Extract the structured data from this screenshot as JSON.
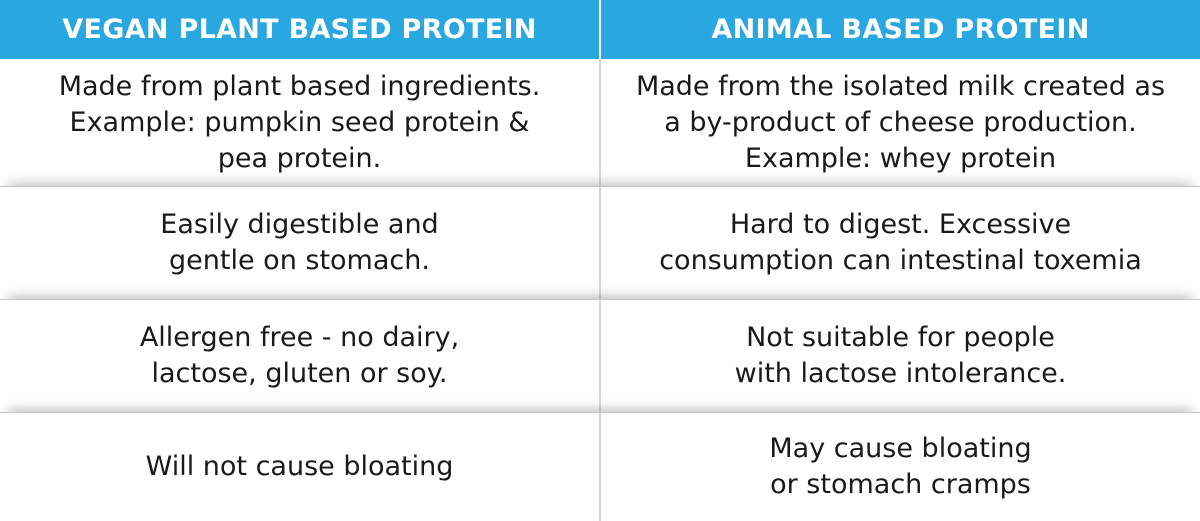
{
  "colors": {
    "header_background": "#29a7e1",
    "header_text": "#ffffff",
    "body_text": "#1a1a1a"
  },
  "headers": {
    "left": "VEGAN PLANT BASED PROTEIN",
    "right": "ANIMAL BASED PROTEIN"
  },
  "rows": [
    {
      "left": "Made from plant based ingredients.\nExample: pumpkin seed protein &\npea protein.",
      "right": "Made from the isolated milk created as\na by-product of cheese production.\nExample: whey protein"
    },
    {
      "left": "Easily digestible and\ngentle on stomach.",
      "right": "Hard to digest. Excessive\nconsumption can intestinal toxemia"
    },
    {
      "left": "Allergen free - no dairy,\nlactose, gluten or soy.",
      "right": "Not suitable for people\nwith lactose intolerance."
    },
    {
      "left": "Will not cause bloating",
      "right": "May cause bloating\nor stomach cramps"
    }
  ]
}
